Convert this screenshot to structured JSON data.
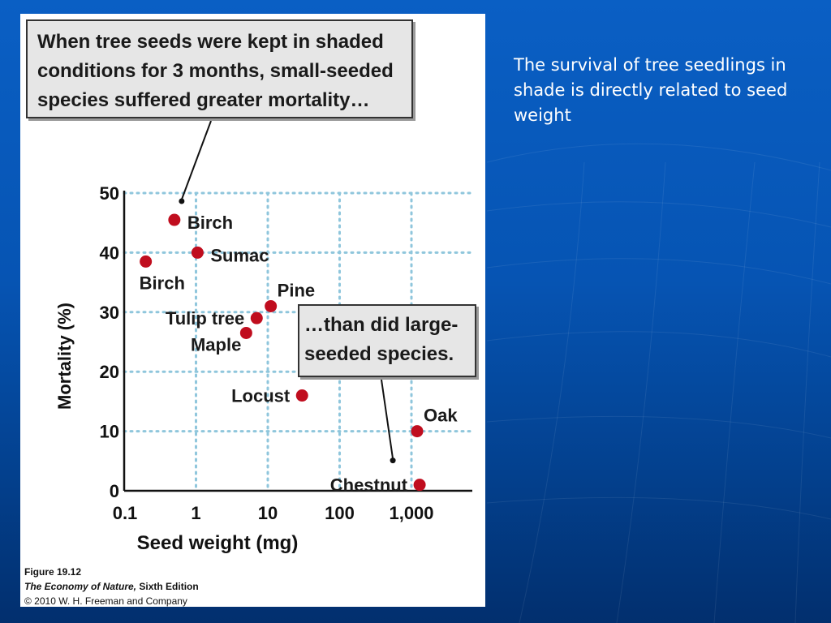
{
  "slide": {
    "side_text": "The survival of tree seedlings in shade is directly related to seed weight"
  },
  "figure": {
    "callout_top_lines": [
      "When tree seeds were kept in shaded",
      "conditions for 3 months, small-seeded",
      "species suffered greater mortality…"
    ],
    "callout_mid_lines": [
      "…than did large-",
      "seeded species."
    ],
    "caption_figure": "Figure 19.12",
    "caption_book": "The Economy of Nature,",
    "caption_edition": " Sixth Edition",
    "caption_copyright": "© 2010 W. H. Freeman and Company"
  },
  "colors": {
    "point": "#c00d1e",
    "grid": "#8fc6dc",
    "axis": "#111111"
  },
  "chart_data": {
    "type": "scatter",
    "xlabel": "Seed weight (mg)",
    "ylabel": "Mortality (%)",
    "x_scale": "log",
    "xlim": [
      0.1,
      5000
    ],
    "ylim": [
      0,
      50
    ],
    "x_ticks": [
      0.1,
      1,
      10,
      100,
      1000
    ],
    "x_tick_labels": [
      "0.1",
      "1",
      "10",
      "100",
      "1,000"
    ],
    "y_ticks": [
      0,
      10,
      20,
      30,
      40,
      50
    ],
    "y_tick_labels": [
      "0",
      "10",
      "20",
      "30",
      "40",
      "50"
    ],
    "grid": true,
    "points": [
      {
        "label": "Birch",
        "x": 0.5,
        "y": 45.5,
        "label_pos": "right"
      },
      {
        "label": "Sumac",
        "x": 1.05,
        "y": 40,
        "label_pos": "right"
      },
      {
        "label": "Birch",
        "x": 0.2,
        "y": 38.5,
        "label_pos": "below"
      },
      {
        "label": "Pine",
        "x": 11,
        "y": 31,
        "label_pos": "above-right"
      },
      {
        "label": "Tulip tree",
        "x": 7,
        "y": 29,
        "label_pos": "left"
      },
      {
        "label": "Maple",
        "x": 5,
        "y": 26.5,
        "label_pos": "left-below"
      },
      {
        "label": "Locust",
        "x": 30,
        "y": 16,
        "label_pos": "left"
      },
      {
        "label": "Oak",
        "x": 1200,
        "y": 10,
        "label_pos": "above-right"
      },
      {
        "label": "Chestnut",
        "x": 1300,
        "y": 1,
        "label_pos": "left"
      }
    ]
  }
}
